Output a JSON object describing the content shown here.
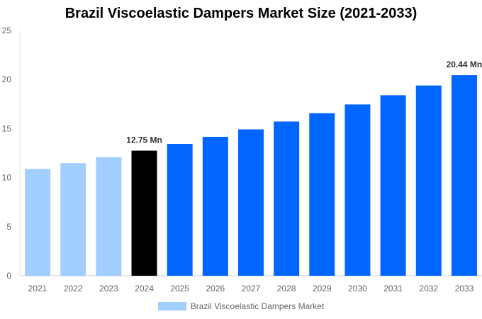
{
  "chart_data": {
    "type": "bar",
    "title": "Brazil Viscoelastic Dampers Market Size (2021-2033)",
    "categories": [
      "2021",
      "2022",
      "2023",
      "2024",
      "2025",
      "2026",
      "2027",
      "2028",
      "2029",
      "2030",
      "2031",
      "2032",
      "2033"
    ],
    "series": [
      {
        "name": "Brazil Viscoelastic Dampers Market",
        "values": [
          10.9,
          11.48,
          12.1,
          12.75,
          13.44,
          14.16,
          14.92,
          15.72,
          16.57,
          17.46,
          18.4,
          19.39,
          20.44
        ]
      }
    ],
    "data_labels": {
      "3": "12.75 Mn",
      "12": "20.44 Mn"
    },
    "ylim": [
      0,
      25
    ],
    "yticks": [
      0,
      5,
      10,
      15,
      20,
      25
    ],
    "xlabel": "",
    "ylabel": "",
    "grid": false,
    "legend_position": "bottom",
    "colors": {
      "historical": "#a3cfff",
      "base_year": "#000000",
      "forecast": "#0066ff"
    }
  }
}
